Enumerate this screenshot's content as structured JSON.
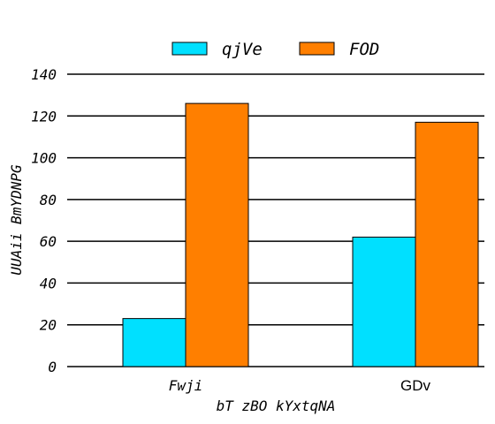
{
  "chart_data": {
    "type": "bar",
    "categories": [
      "Fwji",
      "GDv"
    ],
    "series": [
      {
        "name": "qjVe",
        "values": [
          23,
          62
        ],
        "color": "#00e0ff"
      },
      {
        "name": "FOD",
        "values": [
          126,
          117
        ],
        "color": "#ff7f00"
      }
    ],
    "xlabel": "bT zBO kYxtqNA",
    "ylabel": "UUAii BmYDNPG",
    "ylim": [
      0,
      140
    ],
    "yticks": [
      0,
      20,
      40,
      60,
      80,
      100,
      120,
      140
    ],
    "grid": "horizontal",
    "legend_position": "top-center"
  }
}
